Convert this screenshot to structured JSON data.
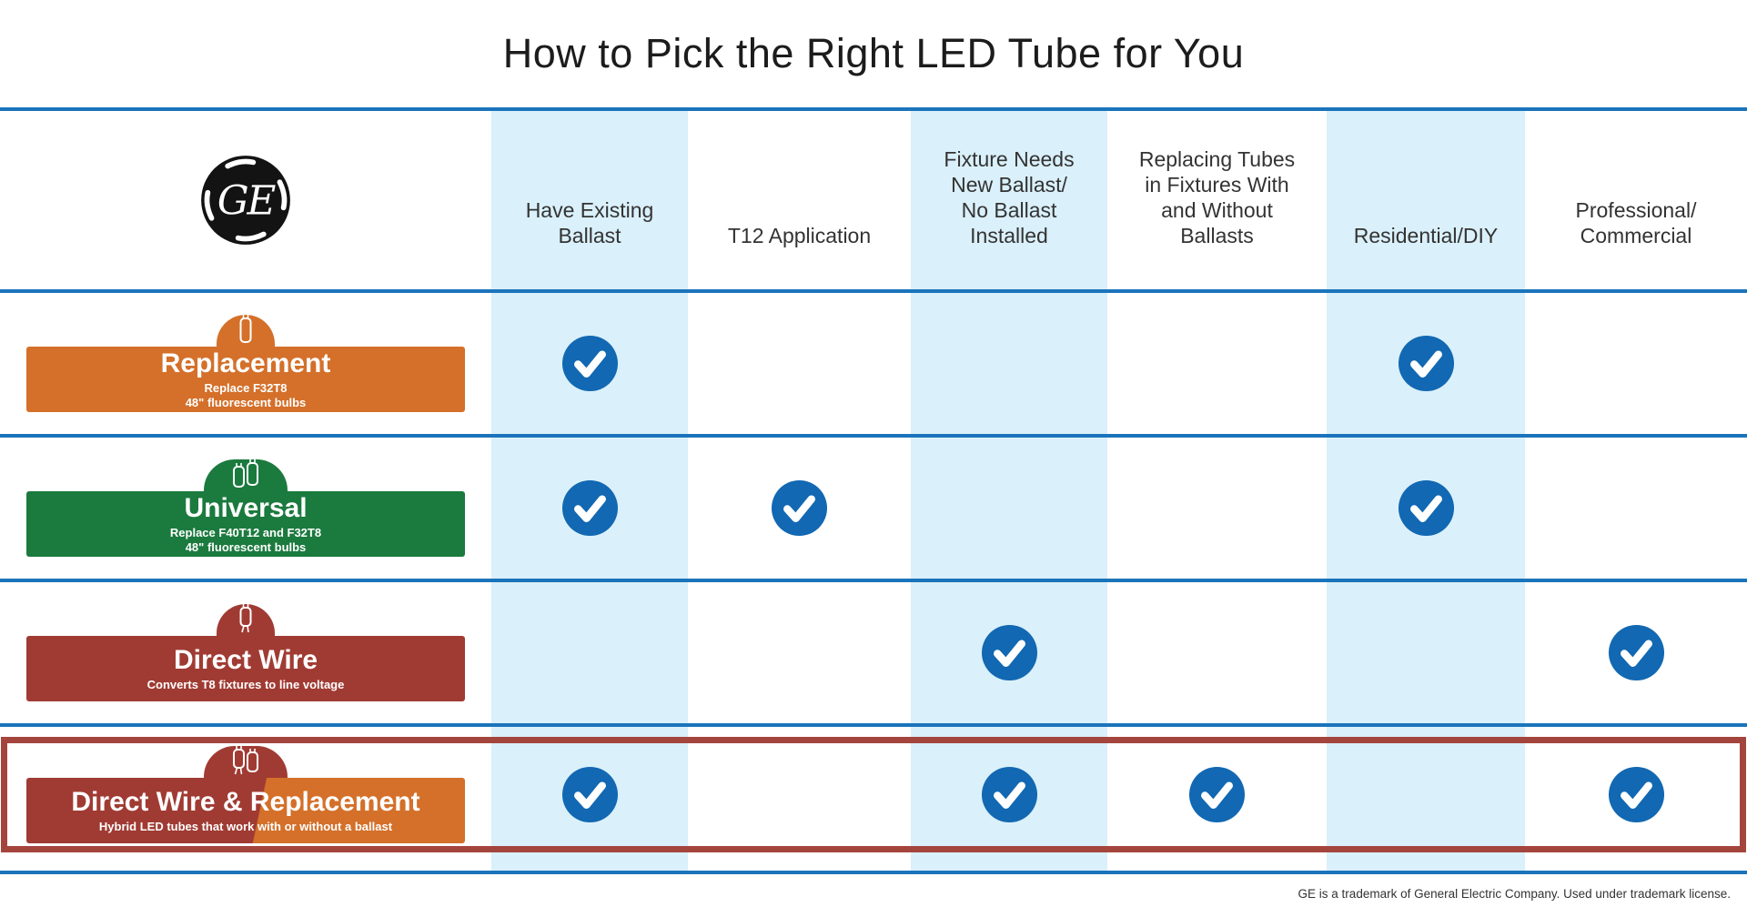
{
  "title": "How to Pick the Right LED Tube for You",
  "footer": "GE is a trademark of General Electric Company. Used under trademark license.",
  "logo": {
    "brand": "GE",
    "monogram_letters": "GE"
  },
  "colors": {
    "line_blue": "#1B74BB",
    "check_blue": "#1268B2",
    "shade_blue": "#DAF0FA",
    "orange": "#D4702A",
    "green": "#1B7A3E",
    "dark_red": "#A03B33",
    "highlight_border": "#A4453D"
  },
  "columns": [
    {
      "label": "Have Existing\nBallast",
      "shaded": true
    },
    {
      "label": "T12 Application",
      "shaded": false
    },
    {
      "label": "Fixture Needs\nNew Ballast/\nNo Ballast\nInstalled",
      "shaded": true
    },
    {
      "label": "Replacing Tubes\nin Fixtures With\nand Without\nBallasts",
      "shaded": false
    },
    {
      "label": "Residential/DIY",
      "shaded": true
    },
    {
      "label": "Professional/\nCommercial",
      "shaded": false
    }
  ],
  "rows": [
    {
      "id": "replacement",
      "name": "Replacement",
      "subtitle": "Replace F32T8\n48\" fluorescent bulbs",
      "banner_color": "#D4702A",
      "dome_color": "#D4702A",
      "icon": "tube",
      "highlighted": false,
      "checks": [
        true,
        false,
        false,
        false,
        true,
        false
      ]
    },
    {
      "id": "universal",
      "name": "Universal",
      "subtitle": "Replace F40T12 and F32T8\n48\" fluorescent bulbs",
      "banner_color": "#1B7A3E",
      "dome_color": "#1B7A3E",
      "icon": "tube-double",
      "highlighted": false,
      "checks": [
        true,
        true,
        false,
        false,
        true,
        false
      ]
    },
    {
      "id": "direct-wire",
      "name": "Direct Wire",
      "subtitle": "Converts T8 fixtures to line voltage",
      "banner_color": "#A03B33",
      "dome_color": "#A03B33",
      "icon": "tube-wire",
      "highlighted": false,
      "checks": [
        false,
        false,
        true,
        false,
        false,
        true
      ]
    },
    {
      "id": "direct-wire-replacement",
      "name": "Direct Wire & Replacement",
      "subtitle": "Hybrid LED tubes that work with or without a ballast",
      "banner_left": "#A03B33",
      "banner_right": "#D4702A",
      "dome_color": "#A03B33",
      "icon": "tube-wire-double",
      "highlighted": true,
      "checks": [
        true,
        false,
        true,
        true,
        false,
        true
      ]
    }
  ],
  "chart_data": {
    "type": "table",
    "title": "How to Pick the Right LED Tube for You",
    "categories": [
      "Have Existing Ballast",
      "T12 Application",
      "Fixture Needs New Ballast/No Ballast Installed",
      "Replacing Tubes in Fixtures With and Without Ballasts",
      "Residential/DIY",
      "Professional/Commercial"
    ],
    "series": [
      {
        "name": "Replacement",
        "values": [
          1,
          0,
          0,
          0,
          1,
          0
        ]
      },
      {
        "name": "Universal",
        "values": [
          1,
          1,
          0,
          0,
          1,
          0
        ]
      },
      {
        "name": "Direct Wire",
        "values": [
          0,
          0,
          1,
          0,
          0,
          1
        ]
      },
      {
        "name": "Direct Wire & Replacement",
        "values": [
          1,
          0,
          1,
          1,
          0,
          1
        ]
      }
    ],
    "legend_position": "none",
    "notes": "1 = checkmark shown, 0 = blank; shaded columns: 1st, 3rd, 5th"
  }
}
